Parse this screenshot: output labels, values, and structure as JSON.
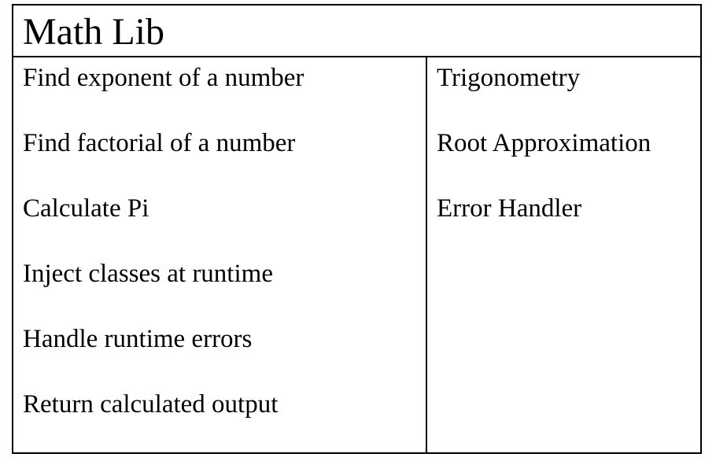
{
  "title": "Math Lib",
  "responsibilities": [
    "Find exponent of a number",
    "Find factorial of a number",
    "Calculate Pi",
    "Inject classes at runtime",
    "Handle runtime errors",
    "Return calculated output"
  ],
  "collaborators": [
    "Trigonometry",
    "Root Approximation",
    "Error Handler"
  ]
}
